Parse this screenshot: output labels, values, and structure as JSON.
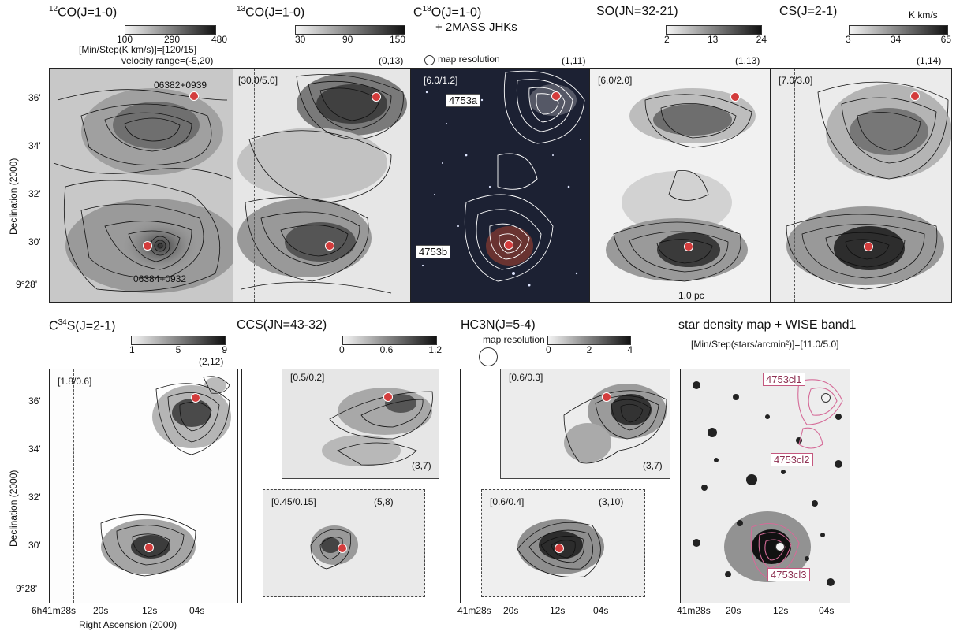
{
  "top": {
    "p1": {
      "title_iso": "12",
      "title_mol": "CO",
      "title_j": "(J=1-0)",
      "cbar_ticks": [
        "100",
        "290",
        "480"
      ],
      "info1": "[Min/Step(K km/s)]=[120/15]",
      "info2": "velocity range=(-5,20)",
      "src1": "06382+0939",
      "src2": "06384+0932"
    },
    "p2": {
      "title_iso": "13",
      "title_mol": "CO",
      "title_j": "(J=1-0)",
      "cbar_ticks": [
        "30",
        "90",
        "150"
      ],
      "coord": "(0,13)",
      "minstep": "[30.0/5.0]"
    },
    "p3": {
      "title_iso": "18",
      "title_pre": "C",
      "title_mol": "O",
      "title_j": "(J=1-0)",
      "sub": "+ 2MASS JHKs",
      "res_label": "map resolution",
      "coord": "(1,11)",
      "minstep": "[6.0/1.2]",
      "tag_a": "4753a",
      "tag_b": "4753b"
    },
    "p4": {
      "title_mol": "SO",
      "title_j": "(JN=32-21)",
      "cbar_ticks": [
        "2",
        "13",
        "24"
      ],
      "coord": "(1,13)",
      "minstep": "[6.0/2.0]",
      "scale": "1.0 pc"
    },
    "p5": {
      "title_mol": "CS",
      "title_j": "(J=2-1)",
      "cbar_ticks": [
        "3",
        "34",
        "65"
      ],
      "cbar_unit": "K km/s",
      "coord": "(1,14)",
      "minstep": "[7.0/3.0]"
    }
  },
  "bottom": {
    "p6": {
      "title_pre": "C",
      "title_iso": "34",
      "title_mol": "S",
      "title_j": "(J=2-1)",
      "cbar_ticks": [
        "1",
        "5",
        "9"
      ],
      "coord": "(2,12)",
      "minstep": "[1.8/0.6]"
    },
    "p7": {
      "title_mol": "CCS",
      "title_j": "(JN=43-32)",
      "cbar_ticks": [
        "0",
        "0.6",
        "1.2"
      ],
      "a_minstep": "[0.5/0.2]",
      "a_coord": "(3,7)",
      "b_minstep": "[0.45/0.15]",
      "b_coord": "(5,8)"
    },
    "p8": {
      "title_mol": "HC3N",
      "title_j": "(J=5-4)",
      "cbar_ticks": [
        "0",
        "2",
        "4"
      ],
      "res_label": "map resolution",
      "a_minstep": "[0.6/0.3]",
      "a_coord": "(3,7)",
      "b_minstep": "[0.6/0.4]",
      "b_coord": "(3,10)"
    },
    "p9": {
      "title": "star density map + WISE band1",
      "info": "[Min/Step(stars/arcmin²)]=[11.0/5.0]",
      "tag1": "4753cl1",
      "tag2": "4753cl2",
      "tag3": "4753cl3"
    }
  },
  "axes": {
    "ylabel": "Declination (2000)",
    "yticks": [
      "36'",
      "34'",
      "32'",
      "30'",
      "9°28'"
    ],
    "xticks": [
      "6h41m28s",
      "20s",
      "12s",
      "04s"
    ],
    "xticks2": [
      "41m28s",
      "20s",
      "12s",
      "04s"
    ],
    "xlabel": "Right Ascension (2000)"
  },
  "colors": {
    "marker": "#d33c3c",
    "contour_pink": "#d56b98"
  }
}
